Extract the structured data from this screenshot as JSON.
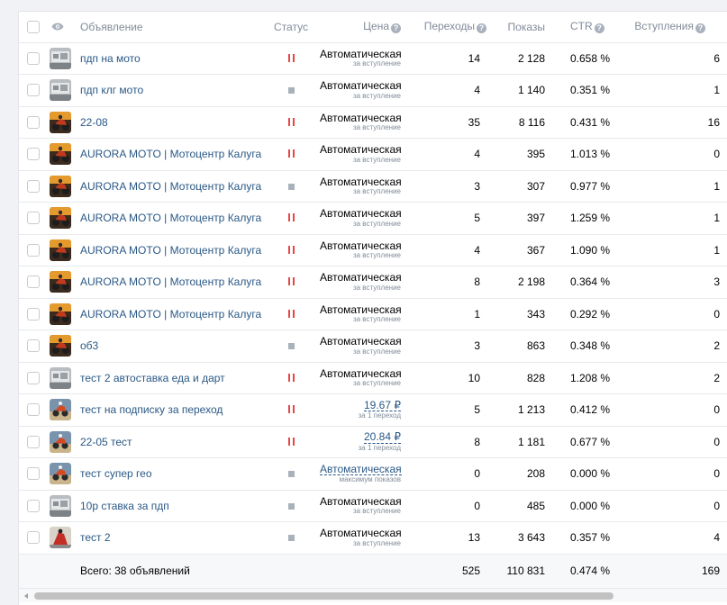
{
  "header": {
    "ad": "Объявление",
    "status": "Статус",
    "price": "Цена",
    "clicks": "Переходы",
    "impressions": "Показы",
    "ctr": "CTR",
    "joins": "Вступления",
    "help_glyph": "?"
  },
  "rows": [
    {
      "name": "пдп на мото",
      "status": "paused",
      "price": "Автоматическая",
      "price_sub": "за вступление",
      "price_link": false,
      "clicks": "14",
      "impressions": "2 128",
      "ctr": "0.658 %",
      "joins": "6",
      "thumb": "moto-grey"
    },
    {
      "name": "пдп клг мото",
      "status": "stopped",
      "price": "Автоматическая",
      "price_sub": "за вступление",
      "price_link": false,
      "clicks": "4",
      "impressions": "1 140",
      "ctr": "0.351 %",
      "joins": "1",
      "thumb": "moto-grey"
    },
    {
      "name": "22-08",
      "status": "paused",
      "price": "Автоматическая",
      "price_sub": "за вступление",
      "price_link": false,
      "clicks": "35",
      "impressions": "8 116",
      "ctr": "0.431 %",
      "joins": "16",
      "thumb": "moto-orange"
    },
    {
      "name": "AURORA MOTO | Мотоцентр Калуга",
      "status": "paused",
      "price": "Автоматическая",
      "price_sub": "за вступление",
      "price_link": false,
      "clicks": "4",
      "impressions": "395",
      "ctr": "1.013 %",
      "joins": "0",
      "thumb": "moto-orange"
    },
    {
      "name": "AURORA MOTO | Мотоцентр Калуга",
      "status": "stopped",
      "price": "Автоматическая",
      "price_sub": "за вступление",
      "price_link": false,
      "clicks": "3",
      "impressions": "307",
      "ctr": "0.977 %",
      "joins": "1",
      "thumb": "moto-orange"
    },
    {
      "name": "AURORA MOTO | Мотоцентр Калуга",
      "status": "paused",
      "price": "Автоматическая",
      "price_sub": "за вступление",
      "price_link": false,
      "clicks": "5",
      "impressions": "397",
      "ctr": "1.259 %",
      "joins": "1",
      "thumb": "moto-orange"
    },
    {
      "name": "AURORA MOTO | Мотоцентр Калуга",
      "status": "paused",
      "price": "Автоматическая",
      "price_sub": "за вступление",
      "price_link": false,
      "clicks": "4",
      "impressions": "367",
      "ctr": "1.090 %",
      "joins": "1",
      "thumb": "moto-orange"
    },
    {
      "name": "AURORA MOTO | Мотоцентр Калуга",
      "status": "paused",
      "price": "Автоматическая",
      "price_sub": "за вступление",
      "price_link": false,
      "clicks": "8",
      "impressions": "2 198",
      "ctr": "0.364 %",
      "joins": "3",
      "thumb": "moto-orange"
    },
    {
      "name": "AURORA MOTO | Мотоцентр Калуга",
      "status": "paused",
      "price": "Автоматическая",
      "price_sub": "за вступление",
      "price_link": false,
      "clicks": "1",
      "impressions": "343",
      "ctr": "0.292 %",
      "joins": "0",
      "thumb": "moto-orange"
    },
    {
      "name": "об3",
      "status": "stopped",
      "price": "Автоматическая",
      "price_sub": "за вступление",
      "price_link": false,
      "clicks": "3",
      "impressions": "863",
      "ctr": "0.348 %",
      "joins": "2",
      "thumb": "moto-orange"
    },
    {
      "name": "тест 2 автоставка еда и дарт",
      "status": "paused",
      "price": "Автоматическая",
      "price_sub": "за вступление",
      "price_link": false,
      "clicks": "10",
      "impressions": "828",
      "ctr": "1.208 %",
      "joins": "2",
      "thumb": "moto-grey"
    },
    {
      "name": "тест на подписку за переход",
      "status": "paused",
      "price": "19.67 ₽",
      "price_sub": "за 1 переход",
      "price_link": true,
      "clicks": "5",
      "impressions": "1 213",
      "ctr": "0.412 %",
      "joins": "0",
      "thumb": "moto-blue"
    },
    {
      "name": "22-05 тест",
      "status": "paused",
      "price": "20.84 ₽",
      "price_sub": "за 1 переход",
      "price_link": true,
      "clicks": "8",
      "impressions": "1 181",
      "ctr": "0.677 %",
      "joins": "0",
      "thumb": "moto-blue"
    },
    {
      "name": "тест супер гео",
      "status": "stopped",
      "price": "Автоматическая",
      "price_sub": "максимум показов",
      "price_link": true,
      "clicks": "0",
      "impressions": "208",
      "ctr": "0.000 %",
      "joins": "0",
      "thumb": "moto-blue"
    },
    {
      "name": "10р ставка за пдп",
      "status": "stopped",
      "price": "Автоматическая",
      "price_sub": "за вступление",
      "price_link": false,
      "clicks": "0",
      "impressions": "485",
      "ctr": "0.000 %",
      "joins": "0",
      "thumb": "moto-grey"
    },
    {
      "name": "тест 2",
      "status": "stopped",
      "price": "Автоматическая",
      "price_sub": "за вступление",
      "price_link": false,
      "clicks": "13",
      "impressions": "3 643",
      "ctr": "0.357 %",
      "joins": "4",
      "thumb": "moto-red"
    }
  ],
  "total": {
    "label": "Всего: 38 объявлений",
    "clicks": "525",
    "impressions": "110 831",
    "ctr": "0.474 %",
    "joins": "169"
  },
  "colors": {
    "link": "#2a5885",
    "paused": "#e64646",
    "stopped": "#a8b1bc",
    "muted": "#818c99"
  },
  "icons": {
    "visibility": "eye-icon",
    "help": "help-icon",
    "paused": "pause-icon",
    "stopped": "stop-icon",
    "scroll_left": "arrow-left-icon"
  }
}
